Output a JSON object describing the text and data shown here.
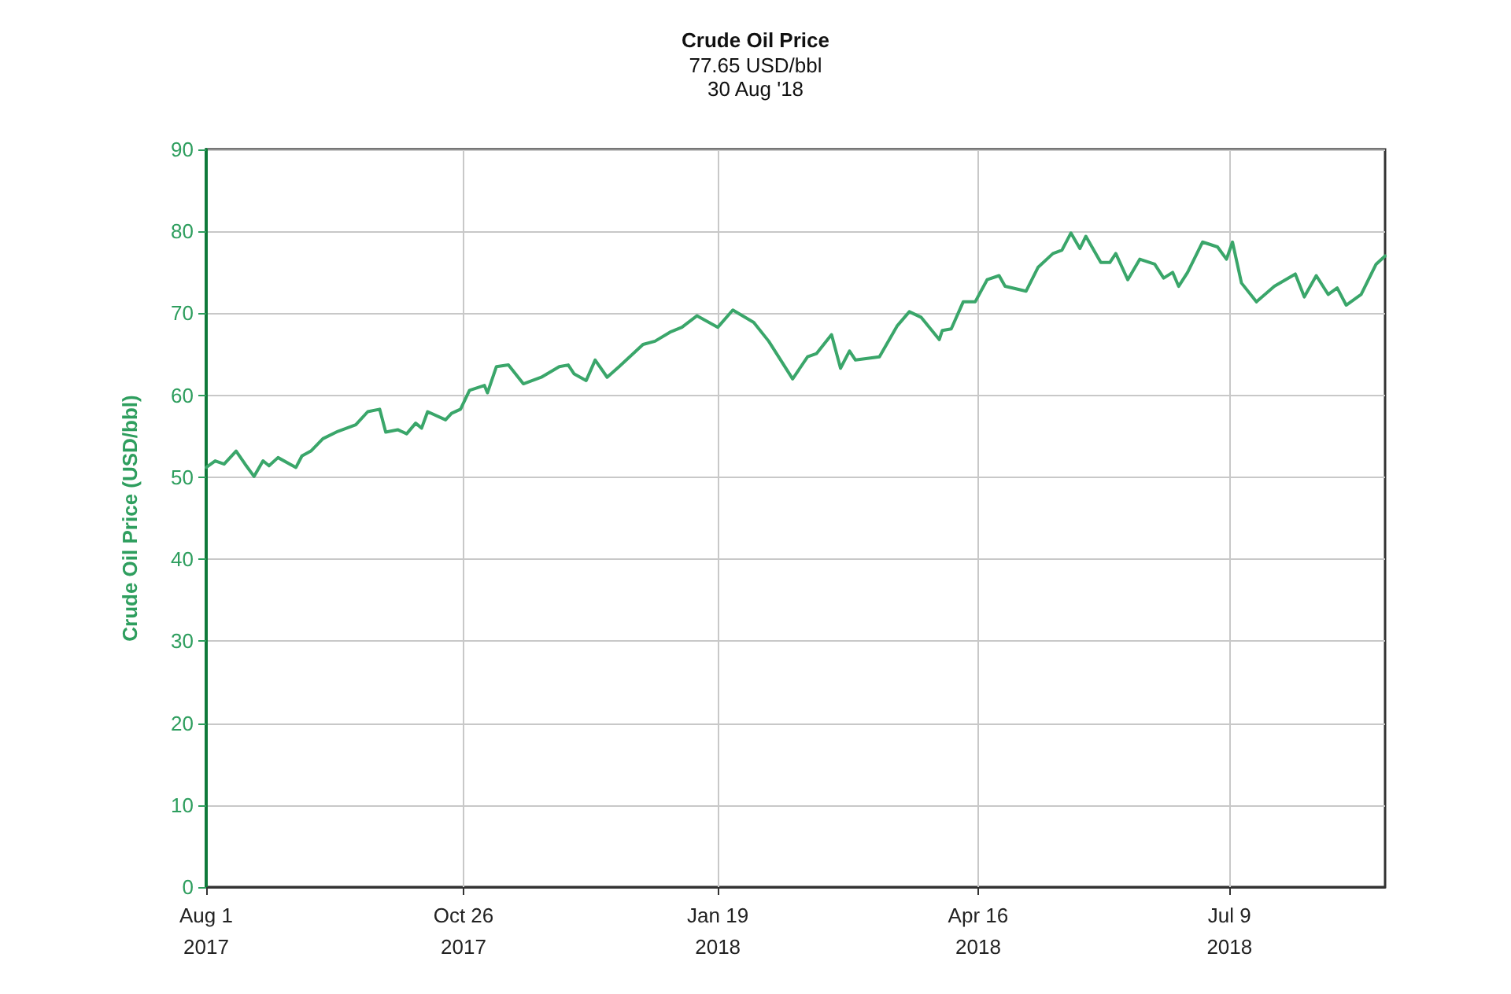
{
  "chart_data": {
    "type": "line",
    "title": "Crude Oil Price",
    "subtitle": "77.65 USD/bbl\n30 Aug '18",
    "ylabel": "Crude Oil Price (USD/bbl)",
    "x": [
      "2017-08-01",
      "2017-08-04",
      "2017-08-07",
      "2017-08-11",
      "2017-08-14",
      "2017-08-17",
      "2017-08-20",
      "2017-08-22",
      "2017-08-25",
      "2017-08-31",
      "2017-09-02",
      "2017-09-05",
      "2017-09-09",
      "2017-09-14",
      "2017-09-20",
      "2017-09-24",
      "2017-09-28",
      "2017-09-30",
      "2017-10-04",
      "2017-10-07",
      "2017-10-10",
      "2017-10-12",
      "2017-10-14",
      "2017-10-20",
      "2017-10-22",
      "2017-10-25",
      "2017-10-28",
      "2017-11-02",
      "2017-11-03",
      "2017-11-06",
      "2017-11-10",
      "2017-11-15",
      "2017-11-21",
      "2017-11-27",
      "2017-11-30",
      "2017-12-02",
      "2017-12-06",
      "2017-12-09",
      "2017-12-13",
      "2017-12-17",
      "2017-12-25",
      "2017-12-29",
      "2018-01-03",
      "2018-01-07",
      "2018-01-12",
      "2018-01-19",
      "2018-01-24",
      "2018-01-31",
      "2018-02-05",
      "2018-02-13",
      "2018-02-18",
      "2018-02-21",
      "2018-02-26",
      "2018-03-01",
      "2018-03-04",
      "2018-03-06",
      "2018-03-14",
      "2018-03-20",
      "2018-03-24",
      "2018-03-28",
      "2018-04-03",
      "2018-04-04",
      "2018-04-07",
      "2018-04-11",
      "2018-04-15",
      "2018-04-19",
      "2018-04-23",
      "2018-04-25",
      "2018-05-02",
      "2018-05-06",
      "2018-05-11",
      "2018-05-14",
      "2018-05-17",
      "2018-05-20",
      "2018-05-22",
      "2018-05-27",
      "2018-05-30",
      "2018-06-01",
      "2018-06-05",
      "2018-06-09",
      "2018-06-14",
      "2018-06-17",
      "2018-06-20",
      "2018-06-22",
      "2018-06-25",
      "2018-06-30",
      "2018-07-05",
      "2018-07-08",
      "2018-07-10",
      "2018-07-13",
      "2018-07-18",
      "2018-07-24",
      "2018-07-31",
      "2018-08-03",
      "2018-08-07",
      "2018-08-11",
      "2018-08-14",
      "2018-08-17",
      "2018-08-22",
      "2018-08-27",
      "2018-08-30"
    ],
    "series": [
      {
        "color": "#3aa66a",
        "values": [
          51.2,
          52.0,
          51.6,
          53.2,
          51.6,
          50.1,
          52.0,
          51.4,
          52.4,
          51.2,
          52.6,
          53.2,
          54.7,
          55.6,
          56.4,
          58.0,
          58.3,
          55.5,
          55.8,
          55.3,
          56.6,
          56.0,
          58.0,
          57.0,
          57.8,
          58.3,
          60.6,
          61.2,
          60.3,
          63.5,
          63.7,
          61.4,
          62.2,
          63.5,
          63.7,
          62.6,
          61.8,
          64.3,
          62.2,
          63.5,
          66.2,
          66.6,
          67.7,
          68.3,
          69.7,
          68.3,
          70.4,
          68.9,
          66.6,
          62.0,
          64.7,
          65.1,
          67.4,
          63.3,
          65.4,
          64.3,
          64.7,
          68.5,
          70.2,
          69.5,
          66.8,
          67.9,
          68.1,
          71.4,
          71.4,
          74.1,
          74.6,
          73.3,
          72.7,
          75.6,
          77.3,
          77.7,
          79.8,
          77.9,
          79.4,
          76.2,
          76.2,
          77.3,
          74.1,
          76.6,
          76.0,
          74.3,
          75.0,
          73.3,
          75.0,
          78.7,
          78.1,
          76.6,
          78.7,
          73.7,
          71.4,
          73.3,
          74.8,
          72.0,
          74.6,
          72.3,
          73.1,
          71.0,
          72.3,
          76.0,
          77.0
        ]
      }
    ],
    "xlim": [
      "2017-08-01",
      "2018-08-30"
    ],
    "xticks": [
      {
        "value": "2017-08-01",
        "label": "Aug 1\n2017"
      },
      {
        "value": "2017-10-26",
        "label": "Oct 26\n2017"
      },
      {
        "value": "2018-01-19",
        "label": "Jan 19\n2018"
      },
      {
        "value": "2018-04-16",
        "label": "Apr 16\n2018"
      },
      {
        "value": "2018-07-09",
        "label": "Jul 9\n2018"
      }
    ],
    "ylim": [
      0,
      90
    ],
    "yticks": [
      0,
      10,
      20,
      30,
      40,
      50,
      60,
      70,
      80,
      90
    ],
    "grid": true,
    "marker": "none",
    "line_style": "solid"
  }
}
